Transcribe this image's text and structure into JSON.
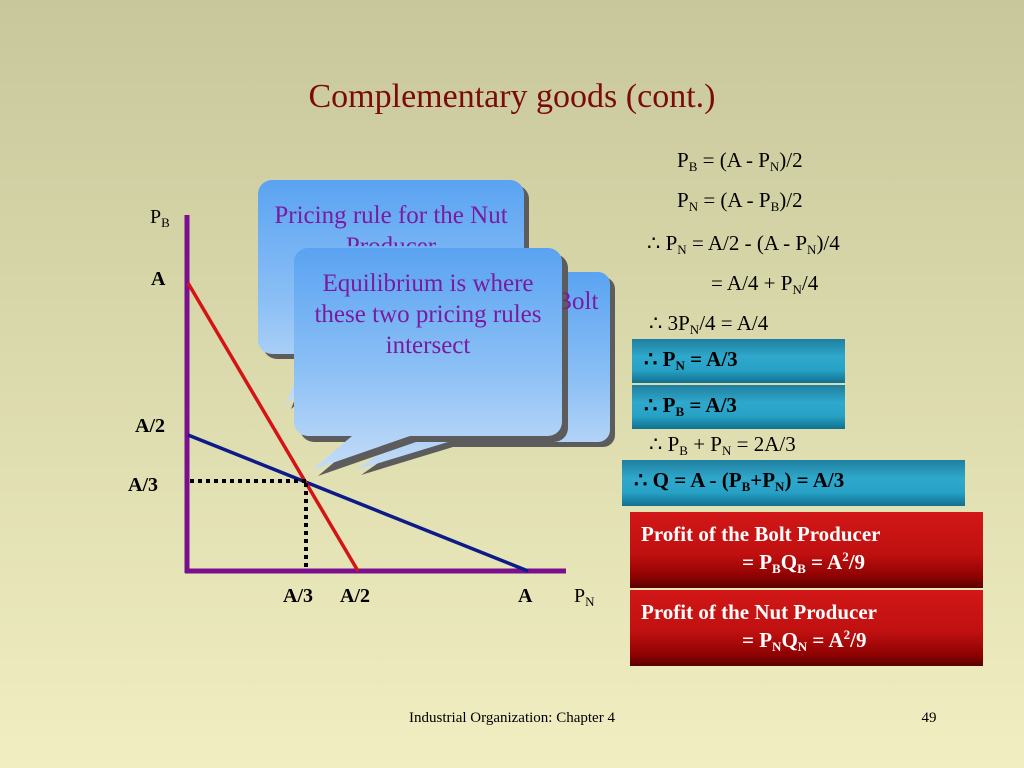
{
  "title": "Complementary goods (cont.)",
  "equations": [
    {
      "id": "eq1",
      "html": "P<sub>B</sub> = (A - P<sub>N</sub>)/2"
    },
    {
      "id": "eq2",
      "html": "P<sub>N</sub> = (A - P<sub>B</sub>)/2"
    },
    {
      "id": "eq3",
      "html": "∴ P<sub>N</sub> = A/2 - (A - P<sub>N</sub>)/4"
    },
    {
      "id": "eq4",
      "html": "= A/4 + P<sub>N</sub>/4"
    },
    {
      "id": "eq5",
      "html": "∴ 3P<sub>N</sub>/4 = A/4"
    },
    {
      "id": "eq6",
      "html": "∴ P<sub>N</sub> = A/3"
    },
    {
      "id": "eq7",
      "html": "∴ P<sub>B</sub> = A/3"
    },
    {
      "id": "eq8",
      "html": "∴ P<sub>B</sub> + P<sub>N</sub> = 2A/3"
    },
    {
      "id": "eq9",
      "html": "∴ Q = A - (P<sub>B</sub>+P<sub>N</sub>) = A/3"
    }
  ],
  "profit_boxes": [
    {
      "line1": "Profit of the Bolt Producer",
      "line2_html": "= P<sub>B</sub>Q<sub>B</sub> = A<sup>2</sup>/9"
    },
    {
      "line1": "Profit of the Nut Producer",
      "line2_html": "= P<sub>N</sub>Q<sub>N</sub> = A<sup>2</sup>/9"
    }
  ],
  "graph": {
    "y_axis_label_html": "P<sub>B</sub>",
    "x_axis_label_html": "P<sub>N</sub>",
    "y_ticks": [
      "A",
      "A/2",
      "A/3"
    ],
    "x_ticks": [
      "A/3",
      "A/2",
      "A"
    ],
    "colors": {
      "axes": "#7a0f8f",
      "red_line": "#d41414",
      "blue_line": "#0c1a8a",
      "dotted": "#000000"
    }
  },
  "callouts": {
    "back1_text": "Pricing rule for the Nut Producer",
    "back2_text": "Pricing rule for the Bolt Producer",
    "front_text": "Equilibrium is where these two pricing rules intersect"
  },
  "footer": {
    "center": "Industrial Organization: Chapter 4",
    "page": "49"
  }
}
